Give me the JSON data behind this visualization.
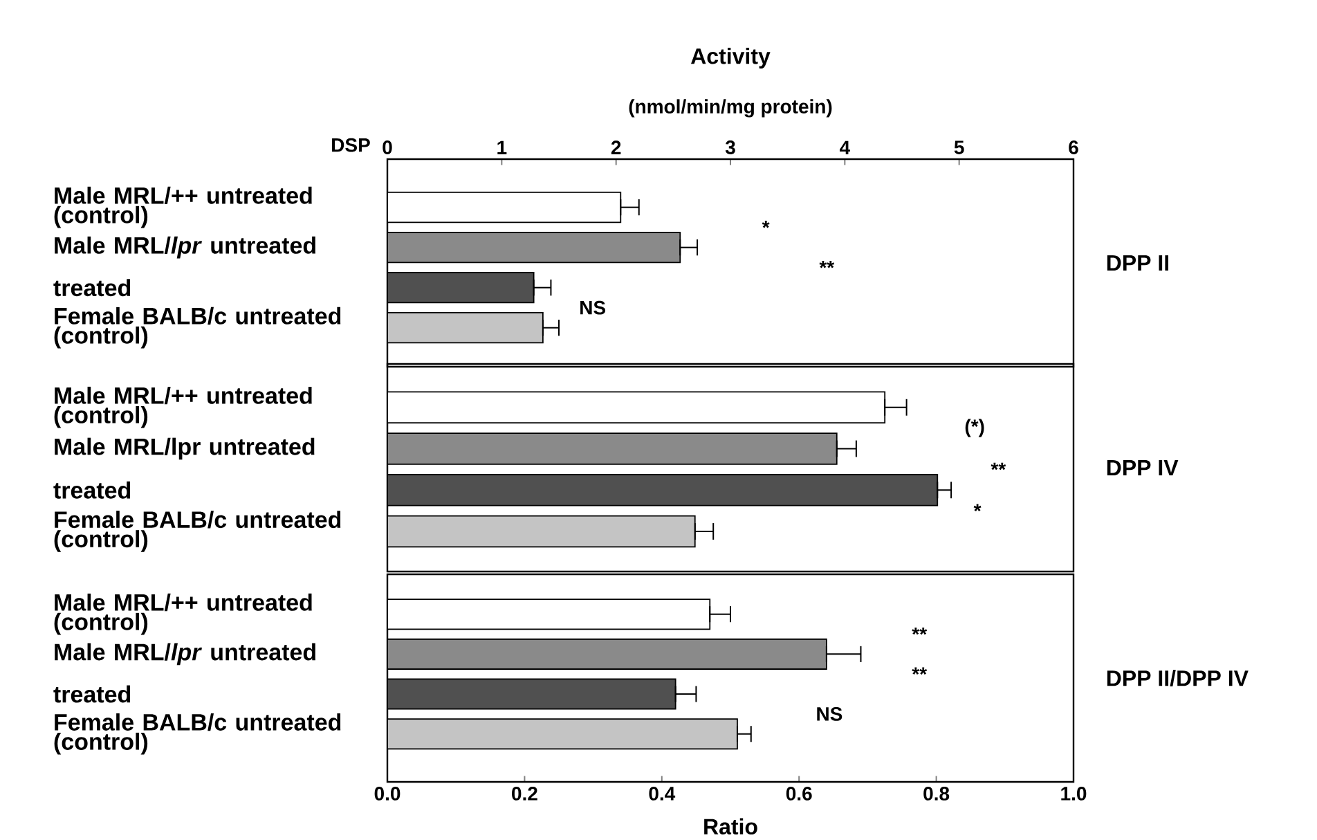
{
  "chart_data": [
    {
      "type": "bar",
      "orientation": "horizontal",
      "y2label": "DPP II",
      "xlabel": "Activity",
      "categories": [
        "Male MRL/++ untreated (control)",
        "Male MRL/*lpr* untreated",
        "treated",
        "Female BALB/c untreated (control)"
      ],
      "values": [
        2.04,
        2.56,
        1.28,
        1.36
      ],
      "errors": [
        [
          2.04,
          2.2
        ],
        [
          2.56,
          2.71
        ],
        [
          1.28,
          1.43
        ],
        [
          1.36,
          1.5
        ]
      ],
      "colors": [
        "#ffffff",
        "#8a8a8a",
        "#505050",
        "#c4c4c4"
      ],
      "xlim": [
        0,
        6
      ],
      "xticks": [
        0,
        1,
        2,
        3,
        4,
        5,
        6
      ],
      "annotations": [
        "DSP",
        "(nmol/min/mg protein)",
        "*",
        "**",
        "NS"
      ]
    },
    {
      "type": "bar",
      "orientation": "horizontal",
      "y2label": "DPP IV",
      "categories": [
        "Male MRL/++ untreated (control)",
        "Male MRL/lpr untreated",
        "treated",
        "Female BALB/c untreated (control)"
      ],
      "values": [
        4.35,
        3.93,
        4.81,
        2.69
      ],
      "errors": [
        [
          4.35,
          4.54
        ],
        [
          3.93,
          4.1
        ],
        [
          4.81,
          4.93
        ],
        [
          2.69,
          2.85
        ]
      ],
      "colors": [
        "#ffffff",
        "#8a8a8a",
        "#505050",
        "#c4c4c4"
      ],
      "xlim": [
        0,
        6
      ],
      "tick_labels": "y",
      "annotations": [
        "(*)",
        "**",
        "*"
      ]
    },
    {
      "type": "bar",
      "orientation": "horizontal",
      "y2label": "DPP II/DPP IV",
      "xlabel": "Ratio",
      "categories": [
        "Male MRL/++ untreated (control)",
        "Male MRL/*lpr* untreated",
        "treated",
        "Female BALB/c untreated (control)"
      ],
      "values": [
        0.47,
        0.64,
        0.42,
        0.51
      ],
      "errors": [
        [
          0.47,
          0.5
        ],
        [
          0.64,
          0.69
        ],
        [
          0.42,
          0.45
        ],
        [
          0.51,
          0.53
        ]
      ],
      "colors": [
        "#ffffff",
        "#8a8a8a",
        "#505050",
        "#c4c4c4"
      ],
      "xlim": [
        0,
        1
      ],
      "xticks": [
        {
          "value": 0,
          "label": "0.0"
        },
        0.2,
        0.4,
        0.6,
        0.8,
        {
          "value": 1,
          "label": "1.0"
        }
      ],
      "annotations": [
        "**",
        "**",
        "NS"
      ]
    }
  ]
}
